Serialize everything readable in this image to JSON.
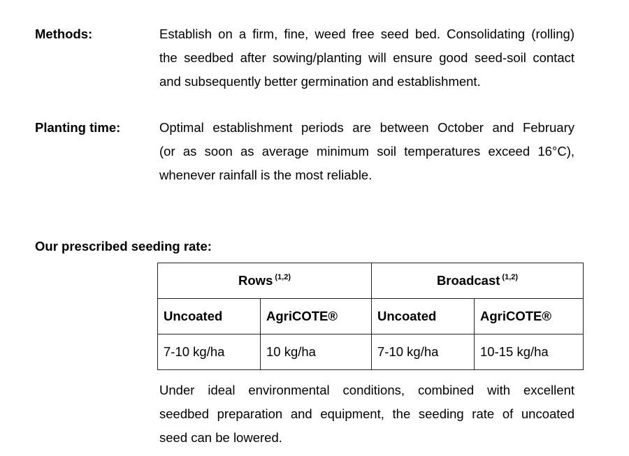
{
  "methods": {
    "label": "Methods:",
    "lines": [
      "Establish on a firm, fine, weed free seed bed. Consolidating (rolling)",
      "the seedbed after sowing/planting will ensure good seed-soil contact",
      "and subsequently better germination and establishment."
    ]
  },
  "planting": {
    "label": "Planting time:",
    "lines": [
      "Optimal establishment periods are between October and February",
      "(or as soon as average minimum soil temperatures exceed 16°C),",
      "whenever rainfall is the most reliable."
    ]
  },
  "seeding": {
    "heading": "Our prescribed seeding rate:",
    "table": {
      "groups": [
        {
          "label": "Rows",
          "note": "(1,2)"
        },
        {
          "label": "Broadcast",
          "note": "(1,2)"
        }
      ],
      "subheaders": [
        "Uncoated",
        "AgriCOTE®",
        "Uncoated",
        "AgriCOTE®"
      ],
      "values": [
        "7-10 kg/ha",
        "10 kg/ha",
        "7-10 kg/ha",
        "10-15 kg/ha"
      ]
    },
    "note_lines": [
      "Under ideal environmental conditions, combined with excellent",
      "seedbed preparation and equipment, the seeding rate of uncoated",
      "seed can be lowered."
    ]
  }
}
